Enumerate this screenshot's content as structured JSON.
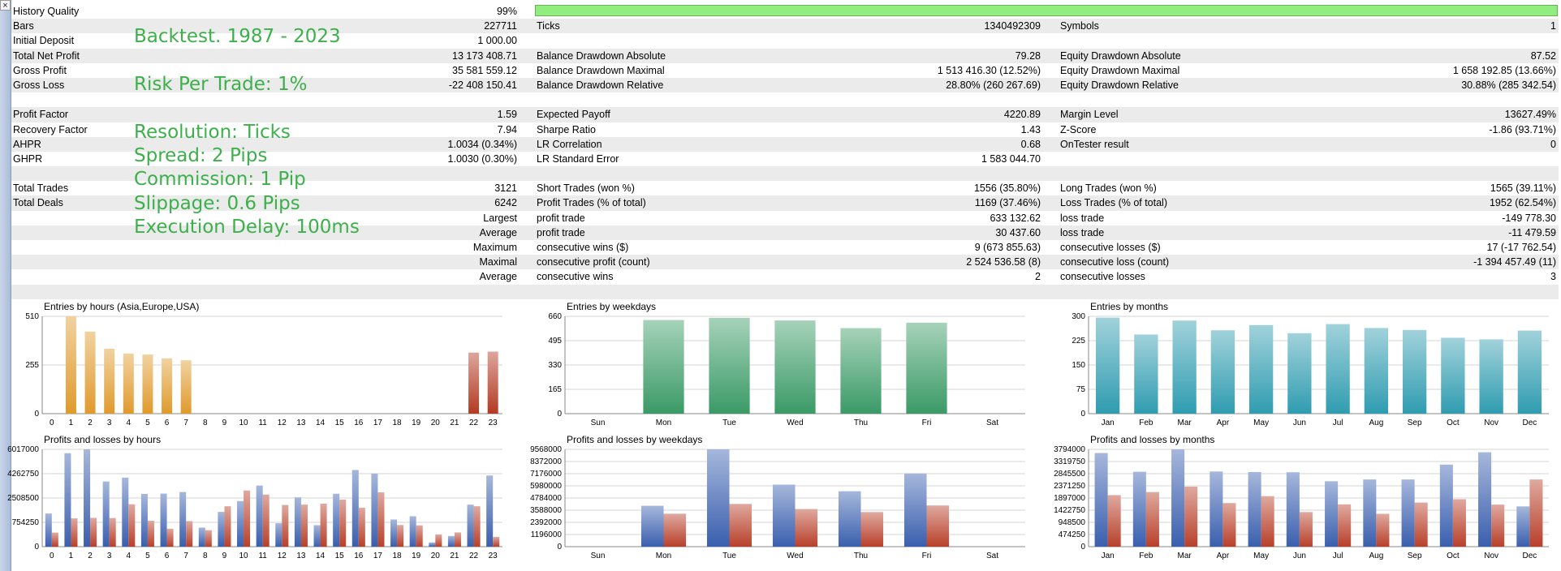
{
  "window": {
    "close_label": "×"
  },
  "report": {
    "rows": [
      {
        "alt": false,
        "c0": "History Quality",
        "c1": "99%",
        "c2": "",
        "c3": "",
        "c4": "",
        "c5": "",
        "quality_bar": 0.99
      },
      {
        "alt": true,
        "c0": "Bars",
        "c1": "227711",
        "c2": "Ticks",
        "c3": "1340492309",
        "c4": "Symbols",
        "c5": "1"
      },
      {
        "alt": false,
        "c0": "Initial Deposit",
        "c1": "1 000.00",
        "c2": "",
        "c3": "",
        "c4": "",
        "c5": ""
      },
      {
        "alt": true,
        "c0": "Total Net Profit",
        "c1": "13 173 408.71",
        "c2": "Balance Drawdown Absolute",
        "c3": "79.28",
        "c4": "Equity Drawdown Absolute",
        "c5": "87.52"
      },
      {
        "alt": false,
        "c0": "Gross Profit",
        "c1": "35 581 559.12",
        "c2": "Balance Drawdown Maximal",
        "c3": "1 513 416.30 (12.52%)",
        "c4": "Equity Drawdown Maximal",
        "c5": "1 658 192.85 (13.66%)"
      },
      {
        "alt": true,
        "c0": "Gross Loss",
        "c1": "-22 408 150.41",
        "c2": "Balance Drawdown Relative",
        "c3": "28.80% (260 267.69)",
        "c4": "Equity Drawdown Relative",
        "c5": "30.88% (285 342.54)"
      },
      {
        "alt": false,
        "c0": "",
        "c1": "",
        "c2": "",
        "c3": "",
        "c4": "",
        "c5": ""
      },
      {
        "alt": true,
        "c0": "Profit Factor",
        "c1": "1.59",
        "c2": "Expected Payoff",
        "c3": "4220.89",
        "c4": "Margin Level",
        "c5": "13627.49%"
      },
      {
        "alt": false,
        "c0": "Recovery Factor",
        "c1": "7.94",
        "c2": "Sharpe Ratio",
        "c3": "1.43",
        "c4": "Z-Score",
        "c5": "-1.86 (93.71%)"
      },
      {
        "alt": true,
        "c0": "AHPR",
        "c1": "1.0034 (0.34%)",
        "c2": "LR Correlation",
        "c3": "0.68",
        "c4": "OnTester result",
        "c5": "0"
      },
      {
        "alt": false,
        "c0": "GHPR",
        "c1": "1.0030 (0.30%)",
        "c2": "LR Standard Error",
        "c3": "1 583 044.70",
        "c4": "",
        "c5": ""
      },
      {
        "alt": true,
        "c0": "",
        "c1": "",
        "c2": "",
        "c3": "",
        "c4": "",
        "c5": ""
      },
      {
        "alt": false,
        "c0": "Total Trades",
        "c1": "3121",
        "c2": "Short Trades (won %)",
        "c3": "1556 (35.80%)",
        "c4": "Long Trades (won %)",
        "c5": "1565 (39.11%)"
      },
      {
        "alt": true,
        "c0": "Total Deals",
        "c1": "6242",
        "c2": "Profit Trades (% of total)",
        "c3": "1169 (37.46%)",
        "c4": "Loss Trades (% of total)",
        "c5": "1952 (62.54%)"
      },
      {
        "alt": false,
        "c0": "",
        "c1": "Largest",
        "c2": "profit trade",
        "c3": "633 132.62",
        "c4": "loss trade",
        "c5": "-149 778.30"
      },
      {
        "alt": true,
        "c0": "",
        "c1": "Average",
        "c2": "profit trade",
        "c3": "30 437.60",
        "c4": "loss trade",
        "c5": "-11 479.59"
      },
      {
        "alt": false,
        "c0": "",
        "c1": "Maximum",
        "c2": "consecutive wins ($)",
        "c3": "9 (673 855.63)",
        "c4": "consecutive losses ($)",
        "c5": "17 (-17 762.54)"
      },
      {
        "alt": true,
        "c0": "",
        "c1": "Maximal",
        "c2": "consecutive profit (count)",
        "c3": "2 524 536.58 (8)",
        "c4": "consecutive loss (count)",
        "c5": "-1 394 457.49 (11)"
      },
      {
        "alt": false,
        "c0": "",
        "c1": "Average",
        "c2": "consecutive wins",
        "c3": "2",
        "c4": "consecutive losses",
        "c5": "3"
      },
      {
        "alt": true,
        "c0": "",
        "c1": "",
        "c2": "",
        "c3": "",
        "c4": "",
        "c5": ""
      }
    ]
  },
  "overlay": {
    "lines": [
      "Backtest. 1987 - 2023",
      "",
      "Risk Per Trade: 1%",
      "",
      "Resolution: Ticks",
      "Spread: 2 Pips",
      "Commission: 1 Pip",
      "Slippage: 0.6 Pips",
      "Execution Delay: 100ms"
    ]
  },
  "colors": {
    "accent_overlay": "#3cb04a",
    "quality_bar": "#90ee7e",
    "row_alt": "#ebebeb",
    "hours_long": "#e09a2c",
    "hours_short": "#b33a22",
    "weekdays": "#3a9a66",
    "months": "#2f9cb0",
    "profit": "#3a5fae",
    "loss": "#b8402a"
  },
  "chart_data": [
    {
      "id": "entries-hours",
      "type": "bar",
      "title": "Entries by hours (Asia,Europe,USA)",
      "categories": [
        "0",
        "1",
        "2",
        "3",
        "4",
        "5",
        "6",
        "7",
        "8",
        "9",
        "10",
        "11",
        "12",
        "13",
        "14",
        "15",
        "16",
        "17",
        "18",
        "19",
        "20",
        "21",
        "22",
        "23"
      ],
      "series": [
        {
          "values": [
            0,
            510,
            430,
            340,
            315,
            310,
            290,
            280,
            0,
            0,
            0,
            0,
            0,
            0,
            0,
            0,
            0,
            0,
            0,
            0,
            0,
            0,
            0,
            0
          ],
          "color": "#e09a2c"
        },
        {
          "values": [
            0,
            0,
            0,
            0,
            0,
            0,
            0,
            0,
            0,
            0,
            0,
            0,
            0,
            0,
            0,
            0,
            0,
            0,
            0,
            0,
            0,
            0,
            320,
            325
          ],
          "color": "#b33a22"
        }
      ],
      "stacked": true,
      "yticks": [
        "510",
        "255",
        "0"
      ],
      "ylim": [
        0,
        510
      ],
      "grid": true
    },
    {
      "id": "entries-weekdays",
      "type": "bar",
      "title": "Entries by weekdays",
      "categories": [
        "Sun",
        "Mon",
        "Tue",
        "Wed",
        "Thu",
        "Fri",
        "Sat"
      ],
      "series": [
        {
          "values": [
            0,
            635,
            650,
            632,
            580,
            617,
            0
          ],
          "color": "#3a9a66"
        }
      ],
      "stacked": false,
      "yticks": [
        "660",
        "495",
        "330",
        "165",
        "0"
      ],
      "ylim": [
        0,
        660
      ],
      "grid": true
    },
    {
      "id": "entries-months",
      "type": "bar",
      "title": "Entries by months",
      "categories": [
        "Jan",
        "Feb",
        "Mar",
        "Apr",
        "May",
        "Jun",
        "Jul",
        "Aug",
        "Sep",
        "Oct",
        "Nov",
        "Dec"
      ],
      "series": [
        {
          "values": [
            296,
            244,
            287,
            257,
            273,
            248,
            276,
            264,
            258,
            234,
            229,
            256
          ],
          "color": "#2f9cb0"
        }
      ],
      "stacked": false,
      "yticks": [
        "300",
        "225",
        "150",
        "75",
        "0"
      ],
      "ylim": [
        0,
        300
      ],
      "grid": true
    },
    {
      "id": "pl-hours",
      "type": "bar",
      "title": "Profits and losses by hours",
      "categories": [
        "0",
        "1",
        "2",
        "3",
        "4",
        "5",
        "6",
        "7",
        "8",
        "9",
        "10",
        "11",
        "12",
        "13",
        "14",
        "15",
        "16",
        "17",
        "18",
        "19",
        "20",
        "21",
        "22",
        "23"
      ],
      "series": [
        {
          "name": "Profit",
          "values": [
            2050000,
            5780000,
            6017000,
            4030000,
            4270000,
            3260000,
            3280000,
            3380000,
            1180000,
            2150000,
            2820000,
            3780000,
            1450000,
            3050000,
            1330000,
            3270000,
            4740000,
            4520000,
            1680000,
            1880000,
            260000,
            660000,
            2600000,
            4400000
          ],
          "color": "#3a5fae"
        },
        {
          "name": "Loss",
          "values": [
            870000,
            1750000,
            1780000,
            1770000,
            2620000,
            1600000,
            1110000,
            1580000,
            1020000,
            2500000,
            3470000,
            3220000,
            2580000,
            2600000,
            2660000,
            2910000,
            2410000,
            3360000,
            1340000,
            1320000,
            760000,
            880000,
            2500000,
            600000
          ],
          "color": "#b8402a"
        }
      ],
      "stacked": false,
      "yticks": [
        "6017000",
        "4262750",
        "2508500",
        "754250",
        "0"
      ],
      "ylim": [
        0,
        6017000
      ],
      "grid": true
    },
    {
      "id": "pl-weekdays",
      "type": "bar",
      "title": "Profits and losses by weekdays",
      "categories": [
        "Sun",
        "Mon",
        "Tue",
        "Wed",
        "Thu",
        "Fri",
        "Sat"
      ],
      "series": [
        {
          "name": "Profit",
          "values": [
            0,
            4020000,
            9568000,
            6100000,
            5450000,
            7200000,
            0
          ],
          "color": "#3a5fae"
        },
        {
          "name": "Loss",
          "values": [
            0,
            3240000,
            4200000,
            3700000,
            3400000,
            4050000,
            0
          ],
          "color": "#b8402a"
        }
      ],
      "stacked": false,
      "yticks": [
        "9568000",
        "8372000",
        "7176000",
        "5980000",
        "4784000",
        "3588000",
        "2392000",
        "1196000",
        "0"
      ],
      "ylim": [
        0,
        9568000
      ],
      "grid": true
    },
    {
      "id": "pl-months",
      "type": "bar",
      "title": "Profits and losses by months",
      "categories": [
        "Jan",
        "Feb",
        "Mar",
        "Apr",
        "May",
        "Jun",
        "Jul",
        "Aug",
        "Sep",
        "Oct",
        "Nov",
        "Dec"
      ],
      "series": [
        {
          "name": "Profit",
          "values": [
            3650000,
            2920000,
            3794000,
            2930000,
            2910000,
            2900000,
            2550000,
            2620000,
            2620000,
            3200000,
            3680000,
            1570000
          ],
          "color": "#3a5fae"
        },
        {
          "name": "Loss",
          "values": [
            2010000,
            2130000,
            2340000,
            1700000,
            1970000,
            1350000,
            1650000,
            1280000,
            1720000,
            1850000,
            1640000,
            2620000
          ],
          "color": "#b8402a"
        }
      ],
      "stacked": false,
      "yticks": [
        "3794000",
        "3319750",
        "2845500",
        "2371250",
        "1897000",
        "1422750",
        "948500",
        "474250",
        "0"
      ],
      "ylim": [
        0,
        3794000
      ],
      "grid": true
    }
  ]
}
